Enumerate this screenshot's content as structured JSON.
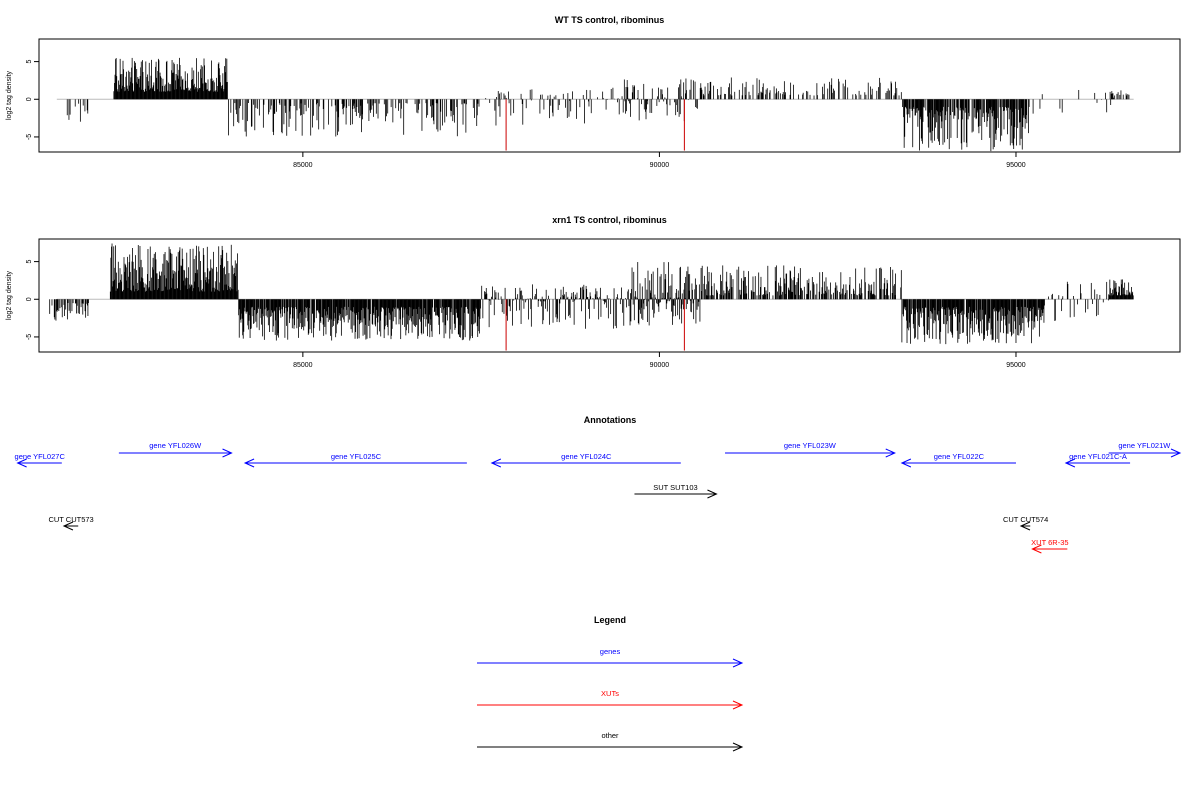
{
  "chart_data": [
    {
      "type": "bar",
      "title": "WT TS control, ribominus",
      "ylabel": "log2 tag density",
      "xlim": [
        81300,
        97300
      ],
      "ylim": [
        -7,
        8
      ],
      "x_ticks": [
        85000,
        90000,
        95000
      ],
      "y_ticks": [
        -5,
        0,
        5
      ],
      "baseline": 0,
      "bar_color": "#000000",
      "highlight_color": "#cc0000",
      "blocks": [
        {
          "start": 81600,
          "end": 82000,
          "density": 0.15,
          "min": -3,
          "max": -0.5
        },
        {
          "start": 82350,
          "end": 83950,
          "density": 1.0,
          "min": 1,
          "max": 5.5
        },
        {
          "start": 83950,
          "end": 87500,
          "density": 0.35,
          "min": -5,
          "max": -0.5
        },
        {
          "start": 87500,
          "end": 89300,
          "density": 0.3,
          "min": -3.5,
          "max": 1.5
        },
        {
          "start": 89300,
          "end": 90600,
          "density": 0.5,
          "min": -3,
          "max": 3
        },
        {
          "start": 90600,
          "end": 93400,
          "density": 0.3,
          "min": 0.5,
          "max": 3
        },
        {
          "start": 93400,
          "end": 95200,
          "density": 0.8,
          "min": -7,
          "max": -1
        },
        {
          "start": 95200,
          "end": 96500,
          "density": 0.08,
          "min": -2,
          "max": 2
        },
        {
          "start": 96200,
          "end": 96600,
          "density": 0.4,
          "min": 0.5,
          "max": 1.5
        }
      ],
      "highlights": [
        {
          "x": 87850,
          "value": -6.8
        },
        {
          "x": 90350,
          "value": -6.8
        }
      ]
    },
    {
      "type": "bar",
      "title": "xrn1 TS control, ribominus",
      "ylabel": "log2 tag density",
      "xlim": [
        81300,
        97300
      ],
      "ylim": [
        -7,
        8
      ],
      "x_ticks": [
        85000,
        90000,
        95000
      ],
      "y_ticks": [
        -5,
        0,
        5
      ],
      "baseline": 0,
      "bar_color": "#000000",
      "highlight_color": "#cc0000",
      "blocks": [
        {
          "start": 81450,
          "end": 82000,
          "density": 0.5,
          "min": -3,
          "max": -0.5
        },
        {
          "start": 82300,
          "end": 84100,
          "density": 1.0,
          "min": 1,
          "max": 7.5
        },
        {
          "start": 84100,
          "end": 87500,
          "density": 0.9,
          "min": -5.5,
          "max": -1
        },
        {
          "start": 87500,
          "end": 89600,
          "density": 0.6,
          "min": -4,
          "max": 2
        },
        {
          "start": 89600,
          "end": 90600,
          "density": 1.0,
          "min": -3.5,
          "max": 5
        },
        {
          "start": 90600,
          "end": 93400,
          "density": 0.6,
          "min": 0.5,
          "max": 4.5
        },
        {
          "start": 93400,
          "end": 95400,
          "density": 0.9,
          "min": -6,
          "max": -1
        },
        {
          "start": 95400,
          "end": 96300,
          "density": 0.3,
          "min": -3,
          "max": 2.5
        },
        {
          "start": 96300,
          "end": 96650,
          "density": 1.0,
          "min": 0.5,
          "max": 3
        }
      ],
      "highlights": [
        {
          "x": 87850,
          "value": -6.8
        },
        {
          "x": 90350,
          "value": -6.8
        }
      ]
    }
  ],
  "annotations": {
    "title": "Annotations",
    "features": [
      {
        "label": "gene YFL027C",
        "start": 81000,
        "end": 81620,
        "direction": "reverse",
        "row": 1,
        "category": "genes"
      },
      {
        "label": "gene YFL026W",
        "start": 82420,
        "end": 84000,
        "direction": "forward",
        "row": 0,
        "category": "genes"
      },
      {
        "label": "gene YFL025C",
        "start": 84190,
        "end": 87300,
        "direction": "reverse",
        "row": 1,
        "category": "genes"
      },
      {
        "label": "gene YFL024C",
        "start": 87650,
        "end": 90300,
        "direction": "reverse",
        "row": 1,
        "category": "genes"
      },
      {
        "label": "gene YFL023W",
        "start": 90920,
        "end": 93300,
        "direction": "forward",
        "row": 0,
        "category": "genes"
      },
      {
        "label": "gene YFL022C",
        "start": 93400,
        "end": 95000,
        "direction": "reverse",
        "row": 1,
        "category": "genes"
      },
      {
        "label": "gene YFL021C-A",
        "start": 95700,
        "end": 96600,
        "direction": "reverse",
        "row": 1,
        "category": "genes"
      },
      {
        "label": "gene YFL021W",
        "start": 96300,
        "end": 97300,
        "direction": "forward",
        "row": 0,
        "category": "genes"
      },
      {
        "label": "SUT SUT103",
        "start": 89650,
        "end": 90800,
        "direction": "forward",
        "row": 2,
        "category": "other"
      },
      {
        "label": "CUT CUT573",
        "start": 81650,
        "end": 81850,
        "direction": "reverse",
        "row": 3,
        "category": "other"
      },
      {
        "label": "CUT CUT574",
        "start": 95070,
        "end": 95200,
        "direction": "reverse",
        "row": 3,
        "category": "other"
      },
      {
        "label": "XUT 6R-35",
        "start": 95230,
        "end": 95720,
        "direction": "reverse",
        "row": 4,
        "category": "XUTs"
      }
    ]
  },
  "legend": {
    "title": "Legend",
    "items": [
      {
        "label": "genes",
        "color": "#0000ff"
      },
      {
        "label": "XUTs",
        "color": "#ff0000"
      },
      {
        "label": "other",
        "color": "#000000"
      }
    ]
  },
  "colors": {
    "genes": "#0000ff",
    "XUTs": "#ff0000",
    "other": "#000000"
  }
}
